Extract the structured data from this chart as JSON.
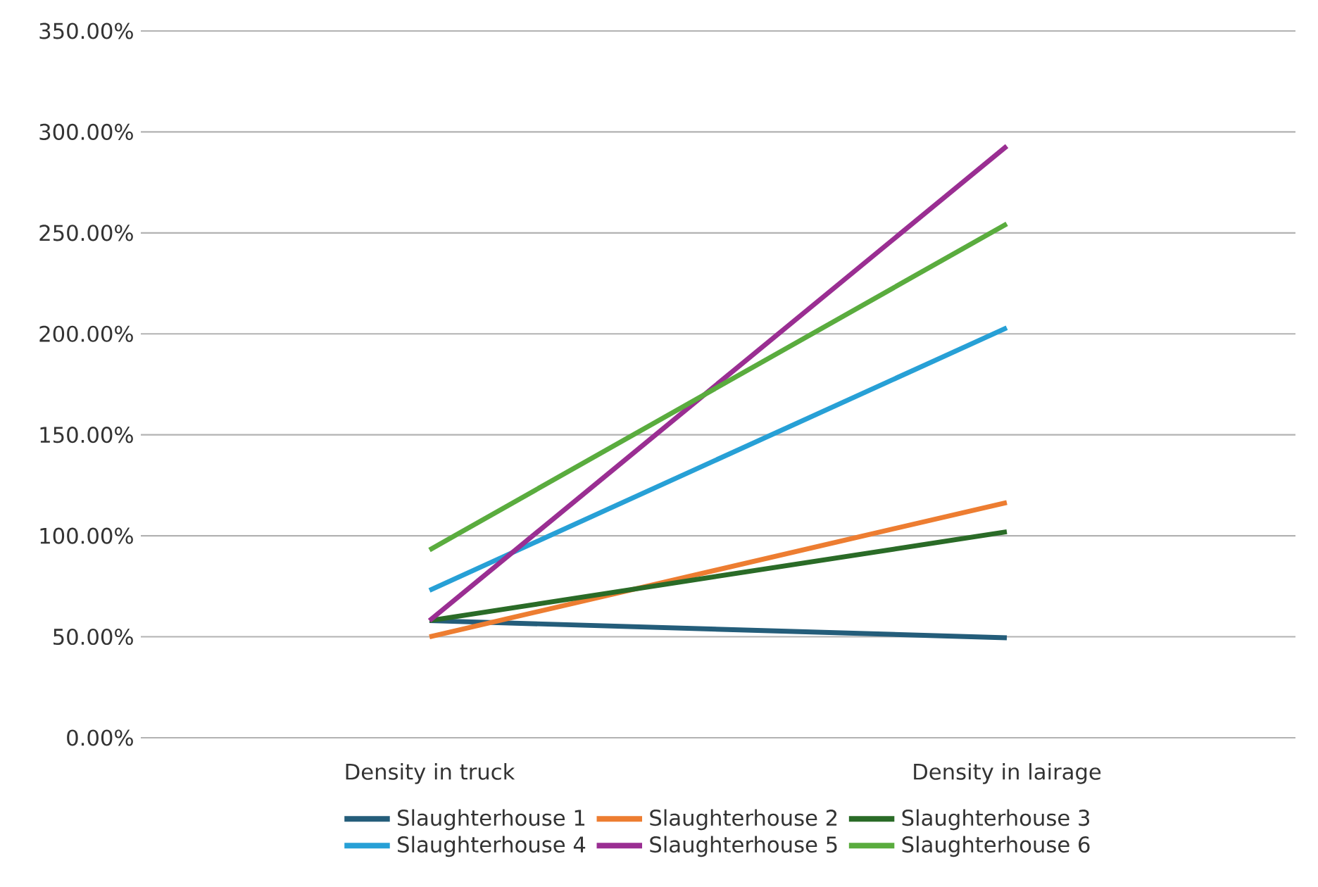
{
  "chart_data": {
    "type": "line",
    "categories": [
      "Density in truck",
      "Density in lairage"
    ],
    "ylim": [
      0,
      350
    ],
    "yticks": [
      {
        "value": 0,
        "label": "0.00%"
      },
      {
        "value": 50,
        "label": "50.00%"
      },
      {
        "value": 100,
        "label": "100.00%"
      },
      {
        "value": 150,
        "label": "150.00%"
      },
      {
        "value": 200,
        "label": "200.00%"
      },
      {
        "value": 250,
        "label": "250.00%"
      },
      {
        "value": 300,
        "label": "300.00%"
      },
      {
        "value": 350,
        "label": "350.00%"
      }
    ],
    "grid": "y",
    "legend": "bottom",
    "marker": "none",
    "line_style": "solid",
    "series": [
      {
        "name": "Slaughterhouse 1",
        "color": "#245d7a",
        "values": [
          58,
          49.5
        ]
      },
      {
        "name": "Slaughterhouse 2",
        "color": "#ed7d31",
        "values": [
          50,
          116.5
        ]
      },
      {
        "name": "Slaughterhouse 3",
        "color": "#2a6b27",
        "values": [
          58,
          102
        ]
      },
      {
        "name": "Slaughterhouse 4",
        "color": "#27a0d6",
        "values": [
          73,
          203
        ]
      },
      {
        "name": "Slaughterhouse 5",
        "color": "#9a2e92",
        "values": [
          58,
          293
        ]
      },
      {
        "name": "Slaughterhouse 6",
        "color": "#5aac3e",
        "values": [
          93,
          254.5
        ]
      }
    ]
  }
}
